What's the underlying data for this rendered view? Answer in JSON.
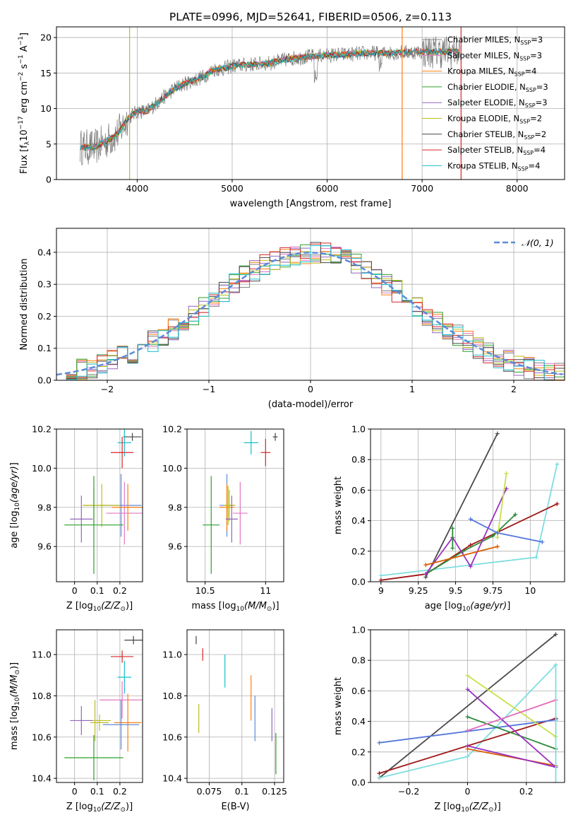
{
  "title": "PLATE=0996, MJD=52641, FIBERID=0506, z=0.113",
  "colors": {
    "chab_miles": "#7f7f7f",
    "salp_miles": "#e377c2",
    "krou_miles": "#ff7f0e",
    "chab_elodie": "#2ca02c",
    "salp_elodie": "#9467bd",
    "krou_elodie": "#bcbd22",
    "chab_stelib": "#444444",
    "salp_stelib": "#d62728",
    "krou_stelib": "#17becf",
    "gaussian": "#5b8bd9",
    "mw_colors": [
      "#6a6a6a",
      "#d95f02",
      "#2e8b3a",
      "#9b30c2",
      "#c9e04a",
      "#4a4a4a",
      "#a01818",
      "#7fdde0",
      "#5577dd",
      "#e26bbb"
    ]
  },
  "chart_data": [
    {
      "type": "line",
      "panel": "spectrum",
      "xlabel": "wavelength [Angstrom, rest frame]",
      "ylabel": "Flux [f_λ 10^-17 erg cm^-2 s^-1 A^-1]",
      "xlim": [
        3150,
        8500
      ],
      "ylim": [
        0,
        21.5
      ],
      "xticks": [
        4000,
        5000,
        6000,
        7000,
        8000
      ],
      "yticks": [
        0,
        5,
        10,
        15,
        20
      ],
      "legend_position": "top-right",
      "continuum": {
        "x": [
          3400,
          3550,
          3700,
          3800,
          3900,
          4000,
          4100,
          4200,
          4300,
          4400,
          4500,
          4600,
          4700,
          4800,
          4900,
          5000,
          5200,
          5400,
          5600,
          5800,
          6000,
          6200,
          6400,
          6600,
          6800,
          7000,
          7200,
          7400
        ],
        "y": [
          4.6,
          4.5,
          5.6,
          6.5,
          8.6,
          9.6,
          9.6,
          10.7,
          11.8,
          12.9,
          13.5,
          14.0,
          14.5,
          15.5,
          15.6,
          16.0,
          16.2,
          16.4,
          17.0,
          17.3,
          17.5,
          17.6,
          17.8,
          17.8,
          17.9,
          18.0,
          18.0,
          18.0
        ]
      },
      "series": [
        {
          "name": "Chabrier MILES",
          "nssp": "3",
          "color_key": "chab_miles"
        },
        {
          "name": "Salpeter MILES",
          "nssp": "3",
          "color_key": "salp_miles"
        },
        {
          "name": "Kroupa MILES",
          "nssp": "4",
          "color_key": "krou_miles"
        },
        {
          "name": "Chabrier ELODIE",
          "nssp": "3",
          "color_key": "chab_elodie"
        },
        {
          "name": "Salpeter ELODIE",
          "nssp": "3",
          "color_key": "salp_elodie"
        },
        {
          "name": "Kroupa ELODIE",
          "nssp": "2",
          "color_key": "krou_elodie"
        },
        {
          "name": "Chabrier STELIB",
          "nssp": "2",
          "color_key": "chab_stelib"
        },
        {
          "name": "Salpeter STELIB",
          "nssp": "4",
          "color_key": "salp_stelib"
        },
        {
          "name": "Kroupa STELIB",
          "nssp": "4",
          "color_key": "krou_stelib"
        }
      ],
      "verticals": [
        {
          "x": 3920,
          "color_key": "krou_elodie"
        },
        {
          "x": 6790,
          "color_key": "krou_miles"
        },
        {
          "x": 7410,
          "color_key": "salp_stelib"
        }
      ]
    },
    {
      "type": "histogram",
      "panel": "residuals",
      "xlabel": "(data-model)/error",
      "ylabel": "Normed distribution",
      "xlim": [
        -2.5,
        2.5
      ],
      "ylim": [
        0,
        0.475
      ],
      "xticks": [
        -2,
        -1,
        0,
        1,
        2
      ],
      "yticks": [
        0.0,
        0.1,
        0.2,
        0.3,
        0.4
      ],
      "legend": "𝒩(0, 1)",
      "gaussian": {
        "mu": 0,
        "sigma": 1
      },
      "bin_width": 0.1
    },
    {
      "type": "scatter",
      "panel": "age-vs-Z",
      "xlabel": "Z [log10(Z/Z⊙)]",
      "ylabel": "age  [log10(age/yr)]",
      "xlim": [
        -0.08,
        0.3
      ],
      "ylim": [
        9.42,
        10.2
      ],
      "xticks": [
        0.0,
        0.1,
        0.2
      ],
      "yticks": [
        9.6,
        9.8,
        10.0,
        10.2
      ],
      "points": [
        {
          "x": 0.255,
          "y": 10.16,
          "ex": 0.04,
          "ey": 0.02,
          "color_key": "chab_stelib"
        },
        {
          "x": 0.22,
          "y": 10.13,
          "ex": 0.03,
          "ey": 0.07,
          "color_key": "krou_stelib"
        },
        {
          "x": 0.21,
          "y": 10.08,
          "ex": 0.05,
          "ey": 0.08,
          "color_key": "salp_stelib"
        },
        {
          "x": 0.205,
          "y": 9.81,
          "ex": 0.09,
          "ey": 0.16,
          "color_key": "gaussian"
        },
        {
          "x": 0.22,
          "y": 9.77,
          "ex": 0.08,
          "ey": 0.16,
          "color_key": "salp_miles"
        },
        {
          "x": 0.235,
          "y": 9.8,
          "ex": 0.07,
          "ey": 0.12,
          "color_key": "krou_miles"
        },
        {
          "x": 0.12,
          "y": 9.81,
          "ex": 0.08,
          "ey": 0.11,
          "color_key": "krou_elodie"
        },
        {
          "x": 0.085,
          "y": 9.81,
          "ex": 0.05,
          "ey": 0.09,
          "color_key": "krou_elodie"
        },
        {
          "x": 0.03,
          "y": 9.74,
          "ex": 0.05,
          "ey": 0.12,
          "color_key": "salp_elodie"
        },
        {
          "x": 0.085,
          "y": 9.71,
          "ex": 0.13,
          "ey": 0.25,
          "color_key": "chab_elodie"
        }
      ]
    },
    {
      "type": "scatter",
      "panel": "age-vs-mass",
      "xlabel": "mass [log10(M/M⊙)]",
      "ylabel": "",
      "xlim": [
        10.35,
        11.15
      ],
      "ylim": [
        9.42,
        10.2
      ],
      "xticks": [
        10.5,
        11.0
      ],
      "yticks": [
        9.6,
        9.8,
        10.0,
        10.2
      ],
      "points": [
        {
          "x": 11.08,
          "y": 10.16,
          "ex": 0.02,
          "ey": 0.02,
          "color_key": "chab_stelib"
        },
        {
          "x": 10.88,
          "y": 10.13,
          "ex": 0.06,
          "ey": 0.06,
          "color_key": "krou_stelib"
        },
        {
          "x": 11.0,
          "y": 10.08,
          "ex": 0.04,
          "ey": 0.07,
          "color_key": "salp_stelib"
        },
        {
          "x": 10.68,
          "y": 9.81,
          "ex": 0.06,
          "ey": 0.16,
          "color_key": "gaussian"
        },
        {
          "x": 10.79,
          "y": 9.77,
          "ex": 0.06,
          "ey": 0.16,
          "color_key": "salp_miles"
        },
        {
          "x": 10.68,
          "y": 9.8,
          "ex": 0.06,
          "ey": 0.12,
          "color_key": "krou_miles"
        },
        {
          "x": 10.69,
          "y": 9.81,
          "ex": 0.04,
          "ey": 0.1,
          "color_key": "krou_elodie"
        },
        {
          "x": 10.7,
          "y": 9.81,
          "ex": 0.05,
          "ey": 0.08,
          "color_key": "krou_elodie"
        },
        {
          "x": 10.72,
          "y": 9.74,
          "ex": 0.05,
          "ey": 0.12,
          "color_key": "salp_elodie"
        },
        {
          "x": 10.55,
          "y": 9.71,
          "ex": 0.07,
          "ey": 0.25,
          "color_key": "chab_elodie"
        }
      ]
    },
    {
      "type": "line",
      "panel": "mass-weight-vs-age",
      "xlabel": "age  [log10(age/yr)]",
      "ylabel": "mass weight",
      "xlim": [
        8.93,
        10.23
      ],
      "ylim": [
        0,
        1.0
      ],
      "xticks": [
        9.0,
        9.25,
        9.5,
        9.75,
        10.0
      ],
      "yticks": [
        0.0,
        0.2,
        0.4,
        0.6,
        0.8,
        1.0
      ],
      "series": [
        {
          "x": [
            9.3,
            9.78
          ],
          "y": [
            0.03,
            0.97
          ],
          "mw": 5
        },
        {
          "x": [
            9.0,
            10.04,
            10.18
          ],
          "y": [
            0.04,
            0.16,
            0.77
          ],
          "mw": 7
        },
        {
          "x": [
            9.0,
            9.3,
            9.6,
            10.18
          ],
          "y": [
            0.01,
            0.05,
            0.24,
            0.51
          ],
          "mw": 6
        },
        {
          "x": [
            9.3,
            9.55,
            9.75,
            9.9
          ],
          "y": [
            0.05,
            0.2,
            0.3,
            0.44
          ],
          "mw": 2
        },
        {
          "x": [
            9.3,
            9.48,
            9.6,
            9.84
          ],
          "y": [
            0.05,
            0.29,
            0.1,
            0.61
          ],
          "mw": 3
        },
        {
          "x": [
            9.78,
            9.84
          ],
          "y": [
            0.29,
            0.71
          ],
          "mw": 4
        },
        {
          "x": [
            9.6,
            9.78,
            10.08
          ],
          "y": [
            0.41,
            0.32,
            0.26
          ],
          "mw": 8
        },
        {
          "x": [
            9.3,
            9.78
          ],
          "y": [
            0.11,
            0.23
          ],
          "mw": 1
        },
        {
          "x": [
            9.48,
            9.48
          ],
          "y": [
            0.22,
            0.35
          ],
          "mw": 2
        }
      ]
    },
    {
      "type": "scatter",
      "panel": "mass-vs-Z",
      "xlabel": "Z [log10(Z/Z⊙)]",
      "ylabel": "mass [log10(M/M⊙)]",
      "xlim": [
        -0.08,
        0.3
      ],
      "ylim": [
        10.38,
        11.12
      ],
      "xticks": [
        0.0,
        0.1,
        0.2
      ],
      "yticks": [
        10.4,
        10.6,
        10.8,
        11.0
      ],
      "points": [
        {
          "x": 0.26,
          "y": 11.07,
          "ex": 0.04,
          "ey": 0.02,
          "color_key": "chab_stelib"
        },
        {
          "x": 0.21,
          "y": 10.99,
          "ex": 0.05,
          "ey": 0.03,
          "color_key": "salp_stelib"
        },
        {
          "x": 0.22,
          "y": 10.89,
          "ex": 0.03,
          "ey": 0.08,
          "color_key": "krou_stelib"
        },
        {
          "x": 0.21,
          "y": 10.78,
          "ex": 0.1,
          "ey": 0.09,
          "color_key": "salp_miles"
        },
        {
          "x": 0.235,
          "y": 10.67,
          "ex": 0.06,
          "ey": 0.14,
          "color_key": "krou_miles"
        },
        {
          "x": 0.205,
          "y": 10.66,
          "ex": 0.08,
          "ey": 0.12,
          "color_key": "gaussian"
        },
        {
          "x": 0.09,
          "y": 10.68,
          "ex": 0.07,
          "ey": 0.1,
          "color_key": "krou_elodie"
        },
        {
          "x": 0.03,
          "y": 10.68,
          "ex": 0.05,
          "ey": 0.07,
          "color_key": "salp_elodie"
        },
        {
          "x": 0.11,
          "y": 10.67,
          "ex": 0.04,
          "ey": 0.04,
          "color_key": "krou_elodie"
        },
        {
          "x": 0.085,
          "y": 10.5,
          "ex": 0.13,
          "ey": 0.11,
          "color_key": "chab_elodie"
        }
      ]
    },
    {
      "type": "scatter",
      "panel": "mass-vs-ebv",
      "xlabel": "E(B-V)",
      "ylabel": "",
      "xlim": [
        0.058,
        0.132
      ],
      "ylim": [
        10.38,
        11.12
      ],
      "xticks": [
        0.075,
        0.1,
        0.125
      ],
      "yticks": [
        10.4,
        10.6,
        10.8,
        11.0
      ],
      "points": [
        {
          "x": 0.065,
          "y": 11.07,
          "ey": 0.02,
          "color_key": "chab_stelib"
        },
        {
          "x": 0.07,
          "y": 11.0,
          "ey": 0.03,
          "color_key": "salp_stelib"
        },
        {
          "x": 0.087,
          "y": 10.92,
          "ey": 0.08,
          "color_key": "krou_stelib"
        },
        {
          "x": 0.067,
          "y": 10.69,
          "ey": 0.07,
          "color_key": "krou_elodie"
        },
        {
          "x": 0.107,
          "y": 10.79,
          "ey": 0.11,
          "color_key": "krou_miles"
        },
        {
          "x": 0.11,
          "y": 10.69,
          "ey": 0.11,
          "color_key": "gaussian"
        },
        {
          "x": 0.123,
          "y": 10.66,
          "ey": 0.08,
          "color_key": "salp_elodie"
        },
        {
          "x": 0.126,
          "y": 10.52,
          "ey": 0.1,
          "color_key": "chab_elodie"
        }
      ]
    },
    {
      "type": "line",
      "panel": "mass-weight-vs-Z",
      "xlabel": "Z [log10(Z/Z⊙)]",
      "ylabel": "mass weight",
      "xlim": [
        -0.33,
        0.33
      ],
      "ylim": [
        0,
        1.0
      ],
      "xticks": [
        -0.2,
        0.0,
        0.2
      ],
      "yticks": [
        0.0,
        0.2,
        0.4,
        0.6,
        0.8,
        1.0
      ],
      "series": [
        {
          "x": [
            -0.3,
            0.3
          ],
          "y": [
            0.03,
            0.97
          ],
          "mw": 5
        },
        {
          "x": [
            -0.3,
            0.0,
            0.3
          ],
          "y": [
            0.03,
            0.17,
            0.77
          ],
          "mw": 7
        },
        {
          "x": [
            -0.3,
            0.3
          ],
          "y": [
            0.06,
            0.42
          ],
          "mw": 6
        },
        {
          "x": [
            -0.3,
            0.3
          ],
          "y": [
            0.26,
            0.41
          ],
          "mw": 8
        },
        {
          "x": [
            0.0,
            0.3
          ],
          "y": [
            0.22,
            0.11
          ],
          "mw": 1
        },
        {
          "x": [
            0.0,
            0.3
          ],
          "y": [
            0.43,
            0.22
          ],
          "mw": 2
        },
        {
          "x": [
            0.0,
            0.3,
            0.0
          ],
          "y": [
            0.61,
            0.1,
            0.24
          ],
          "mw": 3
        },
        {
          "x": [
            0.0,
            0.3
          ],
          "y": [
            0.7,
            0.3
          ],
          "mw": 4
        },
        {
          "x": [
            0.0,
            0.3
          ],
          "y": [
            0.34,
            0.54
          ],
          "mw": 9
        },
        {
          "x": [
            0.3,
            0.3
          ],
          "y": [
            0.0,
            0.77
          ],
          "mw": 7
        }
      ]
    }
  ]
}
